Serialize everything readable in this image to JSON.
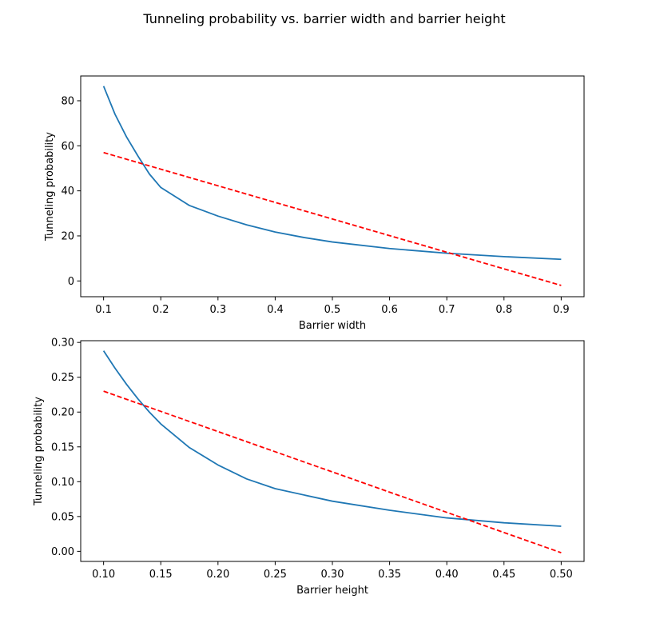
{
  "figure": {
    "title": "Tunneling probability vs. barrier width and barrier height"
  },
  "chart_data": [
    {
      "type": "line",
      "xlabel": "Barrier width",
      "ylabel": "Tunneling probability",
      "xlim": [
        0.06,
        0.94
      ],
      "ylim": [
        -7,
        91
      ],
      "xticks": [
        0.1,
        0.2,
        0.3,
        0.4,
        0.5,
        0.6,
        0.7,
        0.8,
        0.9
      ],
      "xtick_labels": [
        "0.1",
        "0.2",
        "0.3",
        "0.4",
        "0.5",
        "0.6",
        "0.7",
        "0.8",
        "0.9"
      ],
      "yticks": [
        0,
        20,
        40,
        60,
        80
      ],
      "ytick_labels": [
        "0",
        "20",
        "40",
        "60",
        "80"
      ],
      "grid": false,
      "series": [
        {
          "style": "solid",
          "color": "#1f77b4",
          "x": [
            0.1,
            0.12,
            0.14,
            0.16,
            0.18,
            0.2,
            0.25,
            0.3,
            0.35,
            0.4,
            0.45,
            0.5,
            0.6,
            0.7,
            0.8,
            0.9
          ],
          "y": [
            86.5,
            74,
            64,
            55.5,
            47.5,
            41.5,
            33.5,
            28.8,
            24.9,
            21.7,
            19.3,
            17.3,
            14.4,
            12.3,
            10.8,
            9.6
          ]
        },
        {
          "style": "dashed",
          "color": "#ff0000",
          "x": [
            0.1,
            0.9
          ],
          "y": [
            57,
            -2
          ]
        }
      ]
    },
    {
      "type": "line",
      "xlabel": "Barrier height",
      "ylabel": "Tunneling probability",
      "xlim": [
        0.08,
        0.52
      ],
      "ylim": [
        -0.0145,
        0.3025
      ],
      "xticks": [
        0.1,
        0.15,
        0.2,
        0.25,
        0.3,
        0.35,
        0.4,
        0.45,
        0.5
      ],
      "xtick_labels": [
        "0.10",
        "0.15",
        "0.20",
        "0.25",
        "0.30",
        "0.35",
        "0.40",
        "0.45",
        "0.50"
      ],
      "yticks": [
        0,
        0.05,
        0.1,
        0.15,
        0.2,
        0.25,
        0.3
      ],
      "ytick_labels": [
        "0.00",
        "0.05",
        "0.10",
        "0.15",
        "0.20",
        "0.25",
        "0.30"
      ],
      "grid": false,
      "series": [
        {
          "style": "solid",
          "color": "#1f77b4",
          "x": [
            0.1,
            0.11,
            0.12,
            0.13,
            0.14,
            0.15,
            0.175,
            0.2,
            0.225,
            0.25,
            0.3,
            0.35,
            0.4,
            0.45,
            0.5
          ],
          "y": [
            0.288,
            0.263,
            0.24,
            0.219,
            0.2,
            0.183,
            0.149,
            0.124,
            0.104,
            0.09,
            0.072,
            0.059,
            0.048,
            0.041,
            0.036
          ]
        },
        {
          "style": "dashed",
          "color": "#ff0000",
          "x": [
            0.1,
            0.5
          ],
          "y": [
            0.23,
            -0.002
          ]
        }
      ]
    }
  ]
}
